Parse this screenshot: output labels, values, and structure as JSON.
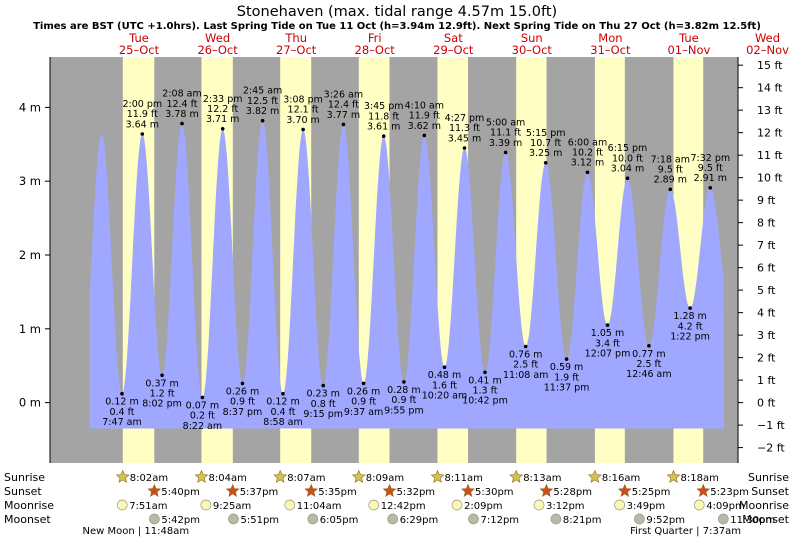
{
  "chart_data": {
    "type": "area",
    "title": "Stonehaven (max. tidal range 4.57m 15.0ft)",
    "subtitle": "Times are BST (UTC +1.0hrs). Last Spring Tide on Tue 11 Oct (h=3.94m 12.9ft). Next Spring Tide on Thu 27 Oct (h=3.82m 12.5ft)",
    "ylim_m": [
      -0.65,
      4.57
    ],
    "yticks_m": [
      {
        "v": 0,
        "label": "0 m"
      },
      {
        "v": 1,
        "label": "1 m"
      },
      {
        "v": 2,
        "label": "2 m"
      },
      {
        "v": 3,
        "label": "3 m"
      },
      {
        "v": 4,
        "label": "4 m"
      }
    ],
    "yticks_ft": [
      {
        "v": -2,
        "label": "−2 ft"
      },
      {
        "v": -1,
        "label": "−1 ft"
      },
      {
        "v": 0,
        "label": "0 ft"
      },
      {
        "v": 1,
        "label": "1 ft"
      },
      {
        "v": 2,
        "label": "2 ft"
      },
      {
        "v": 3,
        "label": "3 ft"
      },
      {
        "v": 4,
        "label": "4 ft"
      },
      {
        "v": 5,
        "label": "5 ft"
      },
      {
        "v": 6,
        "label": "6 ft"
      },
      {
        "v": 7,
        "label": "7 ft"
      },
      {
        "v": 8,
        "label": "8 ft"
      },
      {
        "v": 9,
        "label": "9 ft"
      },
      {
        "v": 10,
        "label": "10 ft"
      },
      {
        "v": 11,
        "label": "11 ft"
      },
      {
        "v": 12,
        "label": "12 ft"
      },
      {
        "v": 13,
        "label": "13 ft"
      },
      {
        "v": 14,
        "label": "14 ft"
      },
      {
        "v": 15,
        "label": "15 ft"
      }
    ],
    "xlim_hours": [
      -3,
      196
    ],
    "days": [
      {
        "wd": "Tue",
        "date": "25–Oct"
      },
      {
        "wd": "Wed",
        "date": "26–Oct"
      },
      {
        "wd": "Thu",
        "date": "27–Oct"
      },
      {
        "wd": "Fri",
        "date": "28–Oct"
      },
      {
        "wd": "Sat",
        "date": "29–Oct"
      },
      {
        "wd": "Sun",
        "date": "30–Oct"
      },
      {
        "wd": "Mon",
        "date": "31–Oct"
      },
      {
        "wd": "Tue",
        "date": "01–Nov"
      },
      {
        "wd": "Wed",
        "date": "02–Nov"
      }
    ],
    "tides": [
      {
        "day": 0,
        "time": "7:47 am",
        "m": 0.12,
        "ft": "0.4 ft",
        "mlabel": "0.12 m",
        "type": "low"
      },
      {
        "day": 0,
        "time": "2:00 pm",
        "m": 3.64,
        "ft": "11.9 ft",
        "mlabel": "3.64 m",
        "type": "high"
      },
      {
        "day": 0,
        "time": "8:02 pm",
        "m": 0.37,
        "ft": "1.2 ft",
        "mlabel": "0.37 m",
        "type": "low"
      },
      {
        "day": 1,
        "time": "2:08 am",
        "m": 3.78,
        "ft": "12.4 ft",
        "mlabel": "3.78 m",
        "type": "high"
      },
      {
        "day": 1,
        "time": "8:22 am",
        "m": 0.07,
        "ft": "0.2 ft",
        "mlabel": "0.07 m",
        "type": "low"
      },
      {
        "day": 1,
        "time": "2:33 pm",
        "m": 3.71,
        "ft": "12.2 ft",
        "mlabel": "3.71 m",
        "type": "high"
      },
      {
        "day": 1,
        "time": "8:37 pm",
        "m": 0.26,
        "ft": "0.9 ft",
        "mlabel": "0.26 m",
        "type": "low"
      },
      {
        "day": 2,
        "time": "2:45 am",
        "m": 3.82,
        "ft": "12.5 ft",
        "mlabel": "3.82 m",
        "type": "high"
      },
      {
        "day": 2,
        "time": "8:58 am",
        "m": 0.12,
        "ft": "0.4 ft",
        "mlabel": "0.12 m",
        "type": "low"
      },
      {
        "day": 2,
        "time": "3:08 pm",
        "m": 3.7,
        "ft": "12.1 ft",
        "mlabel": "3.70 m",
        "type": "high"
      },
      {
        "day": 2,
        "time": "9:15 pm",
        "m": 0.23,
        "ft": "0.8 ft",
        "mlabel": "0.23 m",
        "type": "low"
      },
      {
        "day": 3,
        "time": "3:26 am",
        "m": 3.77,
        "ft": "12.4 ft",
        "mlabel": "3.77 m",
        "type": "high"
      },
      {
        "day": 3,
        "time": "9:37 am",
        "m": 0.26,
        "ft": "0.9 ft",
        "mlabel": "0.26 m",
        "type": "low"
      },
      {
        "day": 3,
        "time": "3:45 pm",
        "m": 3.61,
        "ft": "11.8 ft",
        "mlabel": "3.61 m",
        "type": "high"
      },
      {
        "day": 3,
        "time": "9:55 pm",
        "m": 0.28,
        "ft": "0.9 ft",
        "mlabel": "0.28 m",
        "type": "low"
      },
      {
        "day": 4,
        "time": "4:10 am",
        "m": 3.62,
        "ft": "11.9 ft",
        "mlabel": "3.62 m",
        "type": "high"
      },
      {
        "day": 4,
        "time": "10:20 am",
        "m": 0.48,
        "ft": "1.6 ft",
        "mlabel": "0.48 m",
        "type": "low"
      },
      {
        "day": 4,
        "time": "4:27 pm",
        "m": 3.45,
        "ft": "11.3 ft",
        "mlabel": "3.45 m",
        "type": "high"
      },
      {
        "day": 4,
        "time": "10:42 pm",
        "m": 0.41,
        "ft": "1.3 ft",
        "mlabel": "0.41 m",
        "type": "low"
      },
      {
        "day": 5,
        "time": "5:00 am",
        "m": 3.39,
        "ft": "11.1 ft",
        "mlabel": "3.39 m",
        "type": "high"
      },
      {
        "day": 5,
        "time": "11:08 am",
        "m": 0.76,
        "ft": "2.5 ft",
        "mlabel": "0.76 m",
        "type": "low"
      },
      {
        "day": 5,
        "time": "5:15 pm",
        "m": 3.25,
        "ft": "10.7 ft",
        "mlabel": "3.25 m",
        "type": "high"
      },
      {
        "day": 5,
        "time": "11:37 pm",
        "m": 0.59,
        "ft": "1.9 ft",
        "mlabel": "0.59 m",
        "type": "low"
      },
      {
        "day": 6,
        "time": "6:00 am",
        "m": 3.12,
        "ft": "10.2 ft",
        "mlabel": "3.12 m",
        "type": "high"
      },
      {
        "day": 6,
        "time": "12:07 pm",
        "m": 1.05,
        "ft": "3.4 ft",
        "mlabel": "1.05 m",
        "type": "low"
      },
      {
        "day": 6,
        "time": "6:15 pm",
        "m": 3.04,
        "ft": "10.0 ft",
        "mlabel": "3.04 m",
        "type": "high"
      },
      {
        "day": 7,
        "time": "12:46 am",
        "m": 0.77,
        "ft": "2.5 ft",
        "mlabel": "0.77 m",
        "type": "low"
      },
      {
        "day": 7,
        "time": "7:18 am",
        "m": 2.89,
        "ft": "9.5 ft",
        "mlabel": "2.89 m",
        "type": "high"
      },
      {
        "day": 7,
        "time": "1:22 pm",
        "m": 1.28,
        "ft": "4.2 ft",
        "mlabel": "1.28 m",
        "type": "low"
      },
      {
        "day": 7,
        "time": "7:32 pm",
        "m": 2.91,
        "ft": "9.5 ft",
        "mlabel": "2.91 m",
        "type": "high"
      }
    ],
    "sun": [
      {
        "rise": "8:02am",
        "set": "5:40pm"
      },
      {
        "rise": "8:04am",
        "set": "5:37pm"
      },
      {
        "rise": "8:07am",
        "set": "5:35pm"
      },
      {
        "rise": "8:09am",
        "set": "5:32pm"
      },
      {
        "rise": "8:11am",
        "set": "5:30pm"
      },
      {
        "rise": "8:13am",
        "set": "5:28pm"
      },
      {
        "rise": "8:16am",
        "set": "5:25pm"
      },
      {
        "rise": "8:18am",
        "set": "5:23pm"
      }
    ],
    "moon": [
      {
        "rise": "7:51am",
        "set": "5:42pm"
      },
      {
        "rise": "9:25am",
        "set": "5:51pm"
      },
      {
        "rise": "11:04am",
        "set": "6:05pm"
      },
      {
        "rise": "12:42pm",
        "set": "6:29pm"
      },
      {
        "rise": "2:09pm",
        "set": "7:12pm"
      },
      {
        "rise": "3:12pm",
        "set": "8:21pm"
      },
      {
        "rise": "3:49pm",
        "set": "9:52pm"
      },
      {
        "rise": "4:09pm",
        "set": "11:30pm"
      }
    ],
    "row_labels": {
      "sunrise": "Sunrise",
      "sunset": "Sunset",
      "moonrise": "Moonrise",
      "moonset": "Moonset"
    },
    "moon_phases": [
      {
        "day": 0,
        "label": "New Moon | 11:48am"
      },
      {
        "day": 7,
        "label": "First Quarter | 7:37am"
      }
    ],
    "colors": {
      "night": "#a4a4a4",
      "day": "#ffffc4",
      "water": "#9fa7ff",
      "daytext": "#cc0000",
      "sunrise_star": "#d6c24e",
      "sunset_star": "#d24a1d",
      "moonrise": "#fbf7b9",
      "moonset": "#b8b9aa"
    }
  }
}
